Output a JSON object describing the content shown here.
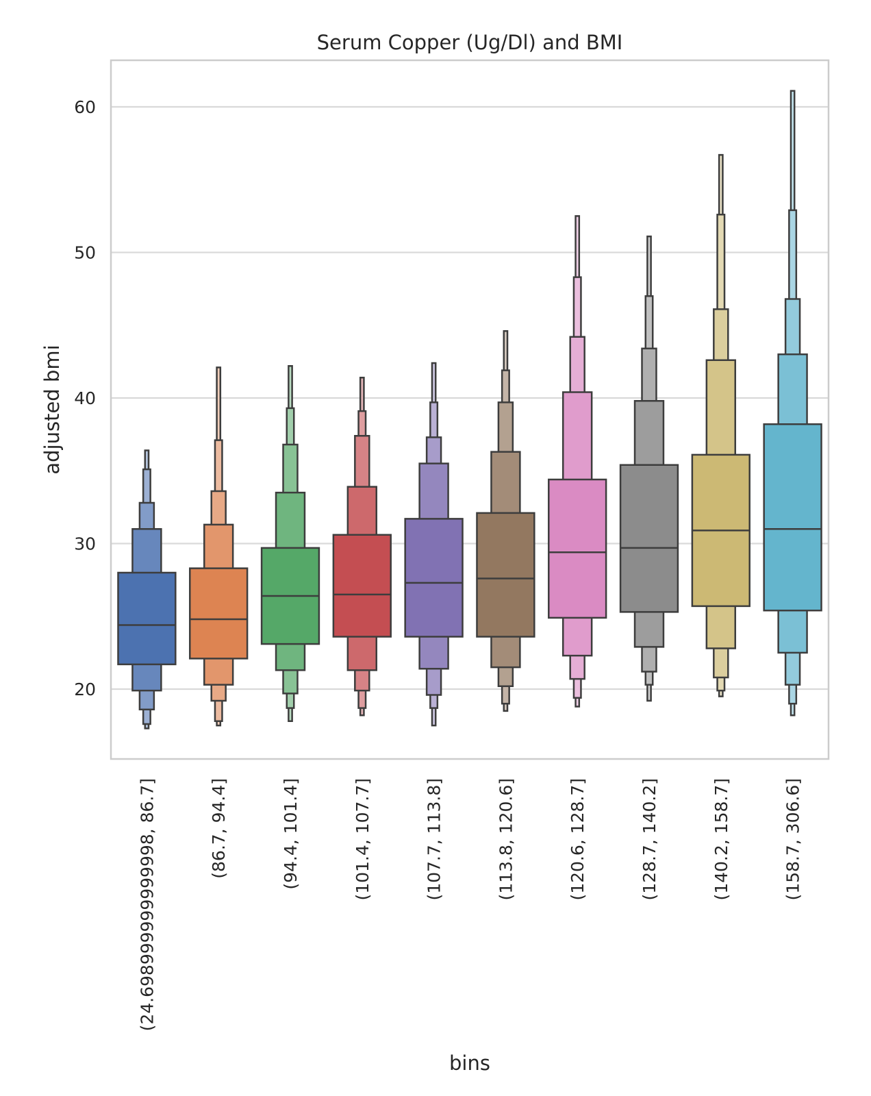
{
  "chart_data": {
    "type": "boxen",
    "title": "Serum Copper (Ug/Dl) and BMI",
    "xlabel": "bins",
    "ylabel": "adjusted bmi",
    "ylim": [
      15.2,
      63.2
    ],
    "yticks": [
      20,
      30,
      40,
      50,
      60
    ],
    "grid": true,
    "legend": "none",
    "categories": [
      "(24.698999999999998, 86.7]",
      "(86.7, 94.4]",
      "(94.4, 101.4]",
      "(101.4, 107.7]",
      "(107.7, 113.8]",
      "(113.8, 120.6]",
      "(120.6, 128.7]",
      "(128.7, 140.2]",
      "(140.2, 158.7]",
      "(158.7, 306.6]"
    ],
    "colors": [
      "#4c72b0",
      "#dd8452",
      "#55a868",
      "#c44e52",
      "#8172b3",
      "#937860",
      "#da8bc3",
      "#8c8c8c",
      "#ccb974",
      "#64b5cd"
    ],
    "edge_color": "#3d3d3d",
    "grid_color": "#d9d9d9",
    "frame_color": "#cccccc",
    "boxes": [
      {
        "median": 24.4,
        "levels": [
          [
            21.7,
            28.0
          ],
          [
            19.9,
            31.0
          ],
          [
            18.6,
            32.8
          ],
          [
            17.6,
            35.1
          ],
          [
            17.3,
            36.4
          ]
        ]
      },
      {
        "median": 24.8,
        "levels": [
          [
            22.1,
            28.3
          ],
          [
            20.3,
            31.3
          ],
          [
            19.2,
            33.6
          ],
          [
            17.8,
            37.1
          ],
          [
            17.5,
            42.1
          ]
        ]
      },
      {
        "median": 26.4,
        "levels": [
          [
            23.1,
            29.7
          ],
          [
            21.3,
            33.5
          ],
          [
            19.7,
            36.8
          ],
          [
            18.7,
            39.3
          ],
          [
            17.8,
            42.2
          ]
        ]
      },
      {
        "median": 26.5,
        "levels": [
          [
            23.6,
            30.6
          ],
          [
            21.3,
            33.9
          ],
          [
            19.9,
            37.4
          ],
          [
            18.7,
            39.1
          ],
          [
            18.2,
            41.4
          ]
        ]
      },
      {
        "median": 27.3,
        "levels": [
          [
            23.6,
            31.7
          ],
          [
            21.4,
            35.5
          ],
          [
            19.6,
            37.3
          ],
          [
            18.7,
            39.7
          ],
          [
            17.5,
            42.4
          ]
        ]
      },
      {
        "median": 27.6,
        "levels": [
          [
            23.6,
            32.1
          ],
          [
            21.5,
            36.3
          ],
          [
            20.2,
            39.7
          ],
          [
            19.0,
            41.9
          ],
          [
            18.5,
            44.6
          ]
        ]
      },
      {
        "median": 29.4,
        "levels": [
          [
            24.9,
            34.4
          ],
          [
            22.3,
            40.4
          ],
          [
            20.7,
            44.2
          ],
          [
            19.4,
            48.3
          ],
          [
            18.8,
            52.5
          ]
        ]
      },
      {
        "median": 29.7,
        "levels": [
          [
            25.3,
            35.4
          ],
          [
            22.9,
            39.8
          ],
          [
            21.2,
            43.4
          ],
          [
            20.3,
            47.0
          ],
          [
            19.2,
            51.1
          ]
        ]
      },
      {
        "median": 30.9,
        "levels": [
          [
            25.7,
            36.1
          ],
          [
            22.8,
            42.6
          ],
          [
            20.8,
            46.1
          ],
          [
            19.9,
            52.6
          ],
          [
            19.5,
            56.7
          ]
        ]
      },
      {
        "median": 31.0,
        "levels": [
          [
            25.4,
            38.2
          ],
          [
            22.5,
            43.0
          ],
          [
            20.3,
            46.8
          ],
          [
            19.0,
            52.9
          ],
          [
            18.2,
            61.1
          ]
        ]
      }
    ]
  }
}
